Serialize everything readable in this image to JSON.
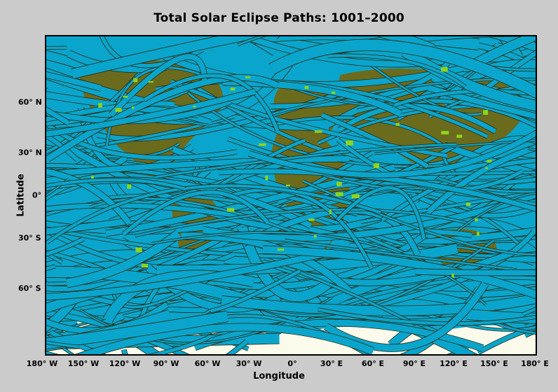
{
  "title": "Total Solar Eclipse Paths:  1001–2000",
  "axes": {
    "x_title": "Longitude",
    "y_title": "Latitude",
    "x_ticks": [
      "180° W",
      "150° W",
      "120° W",
      "90° W",
      "60° W",
      "30° W",
      "0°",
      "30° E",
      "60° E",
      "90° E",
      "120° E",
      "150° E",
      "180° E"
    ],
    "y_ticks": [
      "60° N",
      "30° N",
      "0°",
      "30° S",
      "60° S"
    ]
  },
  "colors": {
    "background": "#cbcbcb",
    "eclipse_path": "#0aa5cc",
    "path_outline": "#2a2a10",
    "land": "#6b6b1e",
    "land_highlight": "#8fd41a",
    "ice": "#fbfbec"
  }
}
